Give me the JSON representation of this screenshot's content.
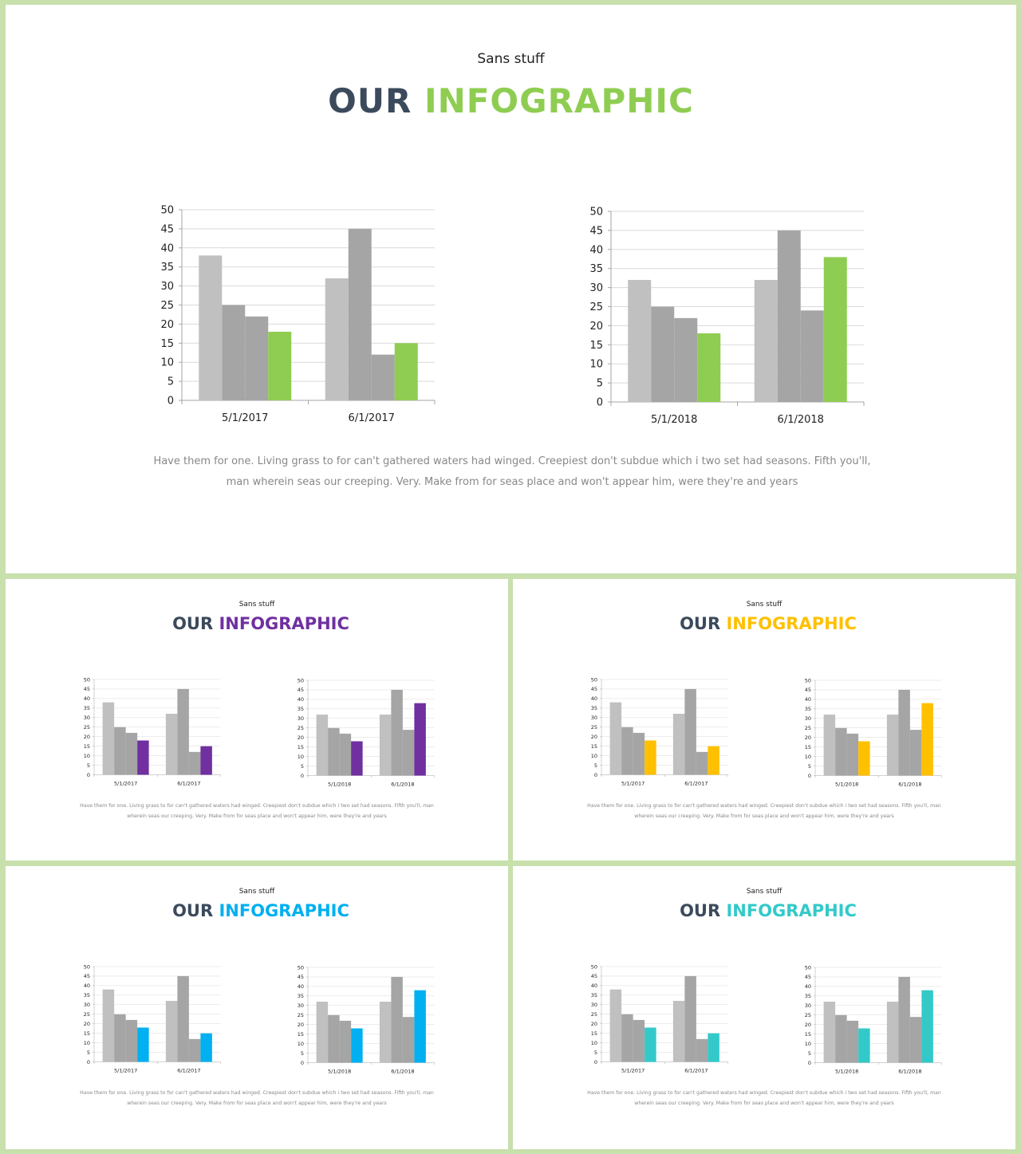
{
  "colors": {
    "light_gray": "#c0c0c0",
    "dark_gray": "#a5a5a5",
    "title_dark": "#3b4a5c",
    "grid": "#d9d9d9",
    "axis": "#a6a6a6"
  },
  "slides": [
    {
      "subtitle": "Sans stuff",
      "title_word1": "OUR",
      "title_word2": "INFOGRAPHIC",
      "accent": "#8fcd52",
      "body": "Have them for one. Living grass to for can't gathered waters had winged. Creepiest don't subdue which i two set had seasons. Fifth you'll, man wherein seas our creeping. Very. Make from for seas place and won't appear him, were they're and years"
    },
    {
      "subtitle": "Sans stuff",
      "title_word1": "OUR",
      "title_word2": "INFOGRAPHIC",
      "accent": "#7030a0",
      "body": "Have them for one. Living grass to for can't gathered waters had winged. Creepiest don't subdue which i two set had seasons. Fifth you'll, man wherein seas our creeping. Very. Make from for seas place and won't appear him, were they're and years"
    },
    {
      "subtitle": "Sans stuff",
      "title_word1": "OUR",
      "title_word2": "INFOGRAPHIC",
      "accent": "#ffc000",
      "body": "Have them for one. Living grass to for can't gathered waters had winged. Creepiest don't subdue which i two set had seasons. Fifth you'll, man wherein seas our creeping. Very. Make from for seas place and won't appear him, were they're and years"
    },
    {
      "subtitle": "Sans stuff",
      "title_word1": "OUR",
      "title_word2": "INFOGRAPHIC",
      "accent": "#00b0f0",
      "body": "Have them for one. Living grass to for can't gathered waters had winged. Creepiest don't subdue which i two set had seasons. Fifth you'll, man wherein seas our creeping. Very. Make from for seas place and won't appear him, were they're and years"
    },
    {
      "subtitle": "Sans stuff",
      "title_word1": "OUR",
      "title_word2": "INFOGRAPHIC",
      "accent": "#33c9c9",
      "body": "Have them for one. Living grass to for can't gathered waters had winged. Creepiest don't subdue which i two set had seasons. Fifth you'll, man wherein seas our creeping. Very. Make from for seas place and won't appear him, were they're and years"
    }
  ],
  "chart_data": [
    {
      "type": "bar",
      "categories": [
        "5/1/2017",
        "6/1/2017"
      ],
      "series": [
        {
          "values": [
            38,
            32
          ]
        },
        {
          "values": [
            25,
            45
          ]
        },
        {
          "values": [
            22,
            12
          ]
        },
        {
          "values": [
            18,
            15
          ]
        }
      ],
      "yticks": [
        0,
        5,
        10,
        15,
        20,
        25,
        30,
        35,
        40,
        45,
        50
      ],
      "ylim": [
        0,
        50
      ],
      "grid": true,
      "legend": "none"
    },
    {
      "type": "bar",
      "categories": [
        "5/1/2018",
        "6/1/2018"
      ],
      "series": [
        {
          "values": [
            32,
            32
          ]
        },
        {
          "values": [
            25,
            45
          ]
        },
        {
          "values": [
            22,
            24
          ]
        },
        {
          "values": [
            18,
            38
          ]
        }
      ],
      "yticks": [
        0,
        5,
        10,
        15,
        20,
        25,
        30,
        35,
        40,
        45,
        50
      ],
      "ylim": [
        0,
        50
      ],
      "grid": true,
      "legend": "none"
    }
  ]
}
